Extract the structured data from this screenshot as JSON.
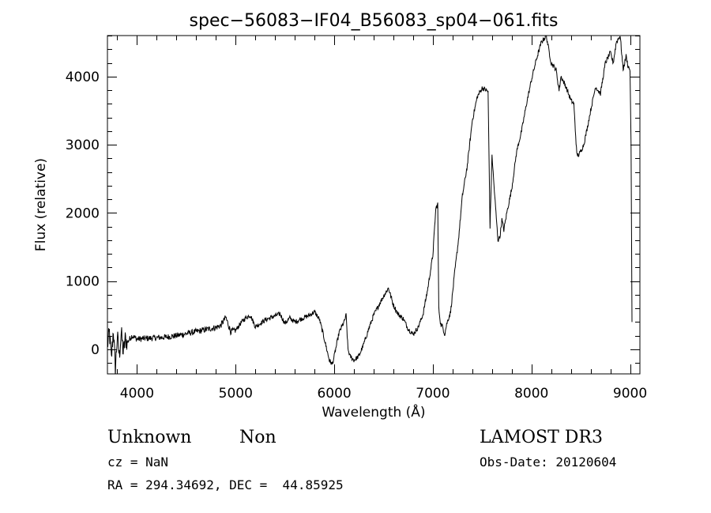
{
  "chart_data": {
    "type": "line",
    "title": "spec−56083−IF04_B56083_sp04−061.fits",
    "xlabel": "Wavelength (Å)",
    "ylabel": "Flux (relative)",
    "xlim": [
      3700,
      9100
    ],
    "ylim": [
      -360,
      4600
    ],
    "x_ticks": [
      4000,
      5000,
      6000,
      7000,
      8000,
      9000
    ],
    "x_tick_labels": [
      "4000",
      "5000",
      "6000",
      "7000",
      "8000",
      "9000"
    ],
    "y_ticks": [
      0,
      1000,
      2000,
      3000,
      4000
    ],
    "y_tick_labels": [
      "0",
      "1000",
      "2000",
      "3000",
      "4000"
    ],
    "x_minor_step": 200,
    "y_minor_step": 200,
    "series": [
      {
        "name": "flux",
        "x": [
          3700,
          3720,
          3740,
          3760,
          3780,
          3800,
          3820,
          3840,
          3860,
          3880,
          3900,
          3950,
          4000,
          4100,
          4200,
          4300,
          4400,
          4500,
          4600,
          4700,
          4800,
          4850,
          4900,
          4950,
          5000,
          5050,
          5100,
          5150,
          5200,
          5300,
          5400,
          5450,
          5500,
          5550,
          5600,
          5700,
          5750,
          5800,
          5850,
          5900,
          5950,
          5980,
          6000,
          6050,
          6100,
          6120,
          6140,
          6160,
          6200,
          6250,
          6300,
          6350,
          6400,
          6450,
          6500,
          6550,
          6600,
          6650,
          6700,
          6750,
          6800,
          6850,
          6900,
          6950,
          7000,
          7030,
          7050,
          7060,
          7080,
          7100,
          7120,
          7140,
          7180,
          7220,
          7260,
          7300,
          7350,
          7400,
          7450,
          7500,
          7530,
          7560,
          7580,
          7600,
          7620,
          7640,
          7660,
          7680,
          7700,
          7720,
          7750,
          7800,
          7850,
          7900,
          7950,
          8000,
          8050,
          8100,
          8150,
          8200,
          8250,
          8280,
          8300,
          8350,
          8400,
          8430,
          8460,
          8480,
          8500,
          8530,
          8560,
          8600,
          8650,
          8700,
          8750,
          8800,
          8830,
          8860,
          8880,
          8900,
          8930,
          8960,
          8980,
          9000,
          9010,
          9020
        ],
        "y": [
          50,
          250,
          -150,
          300,
          -300,
          200,
          -100,
          250,
          -50,
          150,
          100,
          200,
          150,
          160,
          170,
          180,
          200,
          230,
          260,
          290,
          320,
          350,
          470,
          260,
          280,
          380,
          460,
          500,
          330,
          430,
          490,
          520,
          380,
          460,
          400,
          470,
          500,
          550,
          440,
          150,
          -160,
          -220,
          -100,
          250,
          400,
          500,
          0,
          -100,
          -160,
          -100,
          80,
          300,
          500,
          640,
          780,
          900,
          650,
          510,
          450,
          300,
          220,
          320,
          510,
          900,
          1380,
          2060,
          2130,
          600,
          360,
          330,
          220,
          370,
          550,
          1100,
          1600,
          2250,
          2700,
          3350,
          3700,
          3830,
          3810,
          3780,
          1800,
          2850,
          2400,
          2000,
          1600,
          1650,
          1900,
          1750,
          2000,
          2350,
          2900,
          3200,
          3600,
          3950,
          4250,
          4500,
          4600,
          4200,
          4100,
          3800,
          4000,
          3850,
          3650,
          3600,
          2850,
          2850,
          2900,
          3000,
          3200,
          3500,
          3850,
          3750,
          4200,
          4350,
          4200,
          4500,
          4550,
          4600,
          4100,
          4300,
          4150,
          4100,
          3000,
          400
        ]
      }
    ]
  },
  "footer": {
    "object_class": "Unknown",
    "subclass": "Non",
    "survey": "LAMOST DR3",
    "redshift": "cz = NaN",
    "obs_date": "Obs-Date: 20120604",
    "coords": "RA = 294.34692, DEC =  44.85925"
  }
}
